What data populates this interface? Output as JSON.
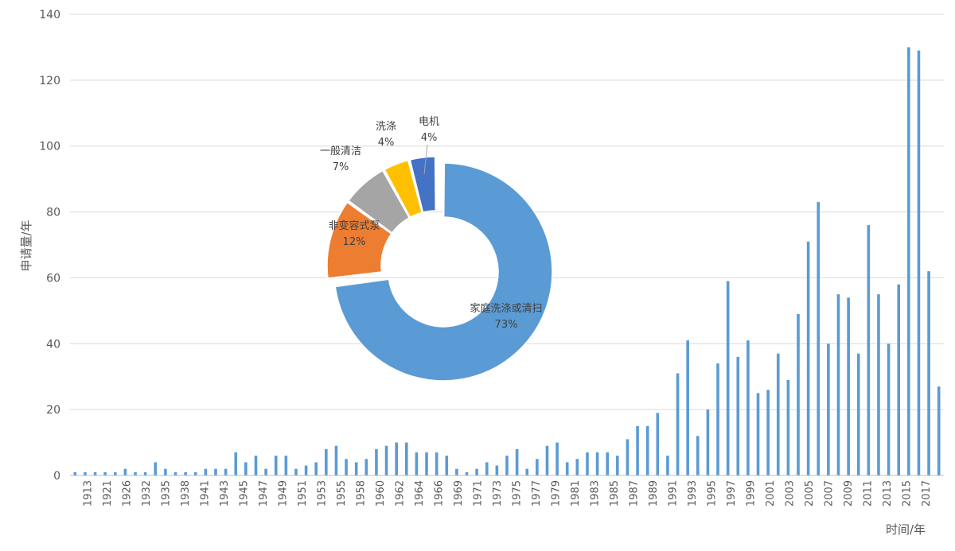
{
  "chart_data": [
    {
      "type": "bar",
      "xlabel": "时间/年",
      "ylabel": "申请量/年",
      "ylim": [
        0,
        140
      ],
      "yticks": [
        0,
        20,
        40,
        60,
        80,
        100,
        120,
        140
      ],
      "grid": true,
      "color": "#5B9BD5",
      "tick_labels": [
        "1913",
        "1921",
        "1926",
        "1932",
        "1935",
        "1938",
        "1941",
        "1943",
        "1945",
        "1947",
        "1949",
        "1951",
        "1953",
        "1955",
        "1958",
        "1960",
        "1962",
        "1964",
        "1966",
        "1969",
        "1971",
        "1973",
        "1975",
        "1977",
        "1979",
        "1981",
        "1983",
        "1985",
        "1987",
        "1989",
        "1991",
        "1993",
        "1995",
        "1997",
        "1999",
        "2001",
        "2003",
        "2005",
        "2007",
        "2009",
        "2011",
        "2013",
        "2015",
        "2017"
      ],
      "values": [
        1,
        1,
        1,
        1,
        1,
        2,
        1,
        1,
        4,
        2,
        1,
        1,
        1,
        2,
        2,
        2,
        7,
        4,
        6,
        2,
        6,
        6,
        2,
        3,
        4,
        8,
        9,
        5,
        4,
        5,
        8,
        9,
        10,
        10,
        7,
        7,
        7,
        6,
        2,
        1,
        2,
        4,
        3,
        6,
        8,
        2,
        5,
        9,
        10,
        4,
        5,
        7,
        7,
        7,
        6,
        11,
        15,
        15,
        19,
        6,
        31,
        41,
        12,
        20,
        34,
        59,
        36,
        41,
        25,
        26,
        37,
        29,
        49,
        71,
        83,
        40,
        55,
        54,
        37,
        76,
        55,
        40,
        58,
        130,
        129,
        62,
        27
      ]
    },
    {
      "type": "pie",
      "style": "doughnut",
      "slices": [
        {
          "label": "家庭洗涤或清扫",
          "pct_label": "73%",
          "value": 73,
          "color": "#5B9BD5",
          "explode": true
        },
        {
          "label": "非变容式泵",
          "pct_label": "12%",
          "value": 12,
          "color": "#ED7D31"
        },
        {
          "label": "一般清洁",
          "pct_label": "7%",
          "value": 7,
          "color": "#A5A5A5"
        },
        {
          "label": "洗涤",
          "pct_label": "4%",
          "value": 4,
          "color": "#FFC000"
        },
        {
          "label": "电机",
          "pct_label": "4%",
          "value": 4,
          "color": "#4472C4"
        }
      ]
    }
  ]
}
